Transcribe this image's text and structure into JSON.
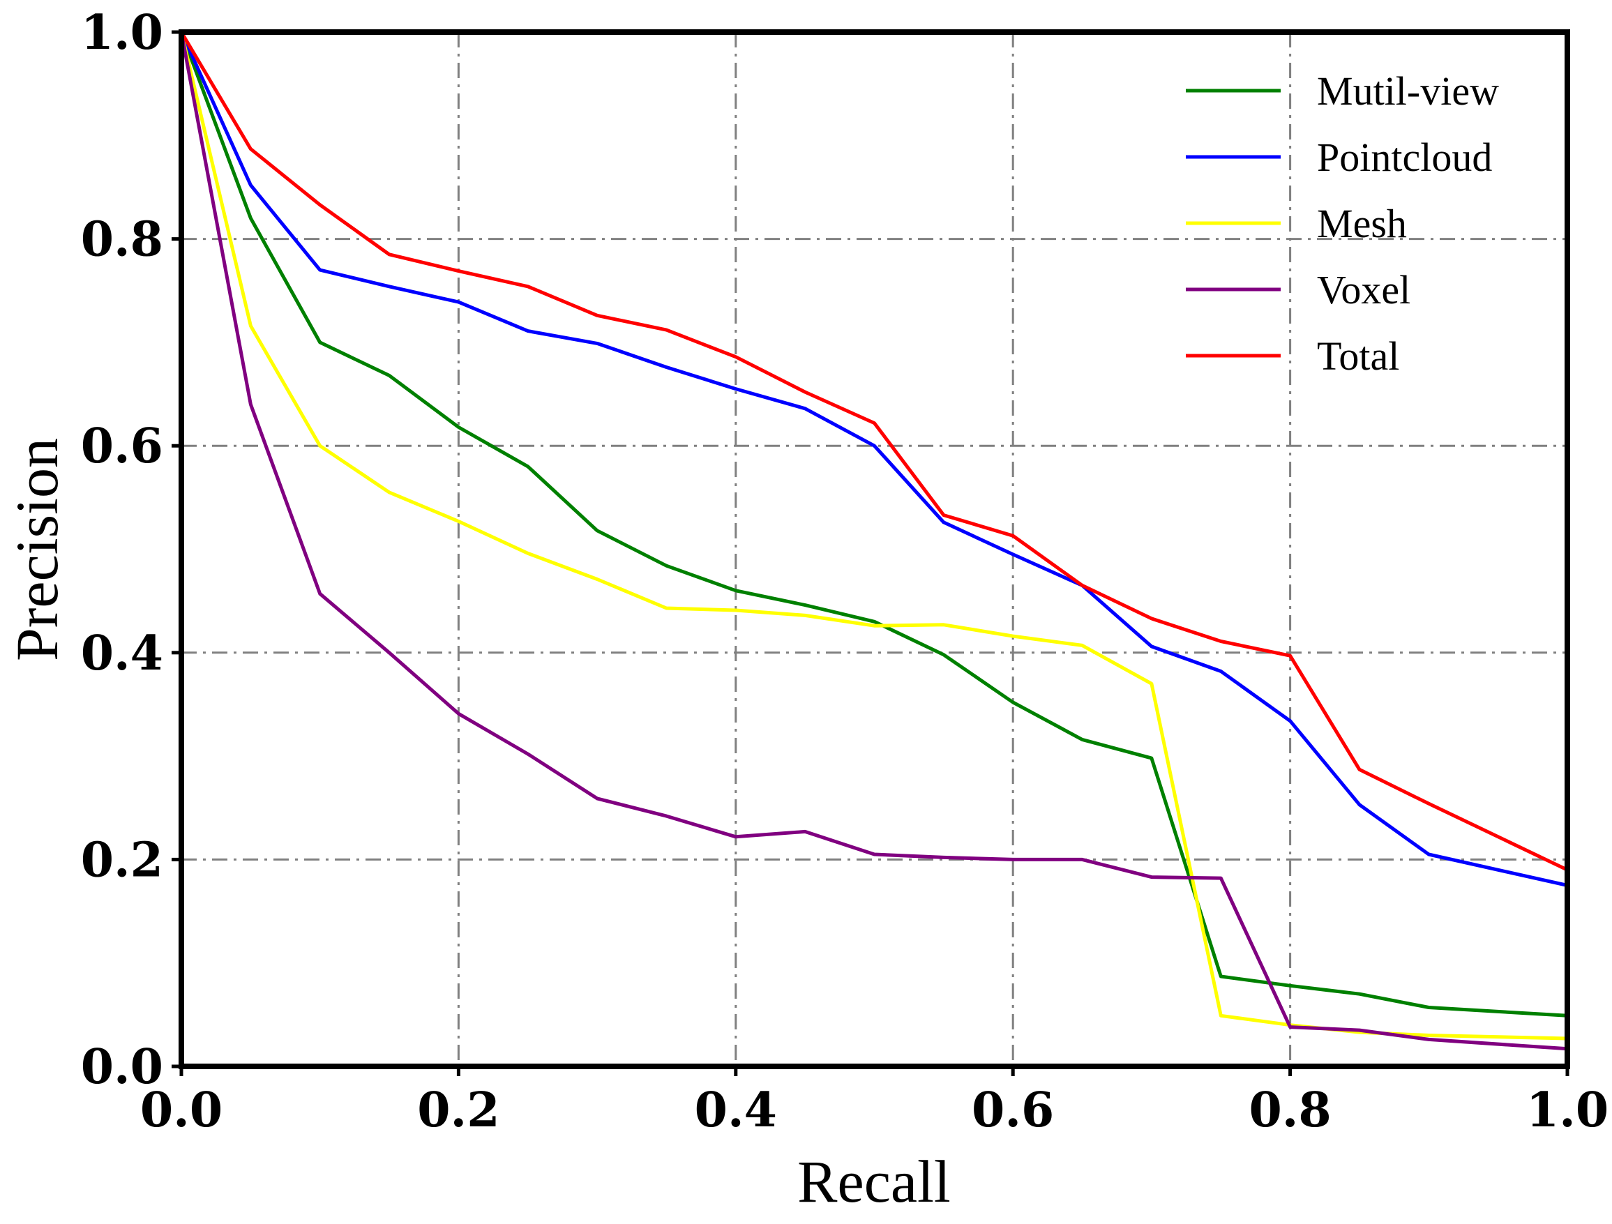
{
  "chart_data": {
    "type": "line",
    "title": "",
    "xlabel": "Recall",
    "ylabel": "Precision",
    "xlim": [
      0.0,
      1.0
    ],
    "ylim": [
      0.0,
      1.0
    ],
    "grid": true,
    "legend_position": "top-right",
    "xticks": [
      "0.0",
      "0.2",
      "0.4",
      "0.6",
      "0.8",
      "1.0"
    ],
    "yticks": [
      "0.0",
      "0.2",
      "0.4",
      "0.6",
      "0.8",
      "1.0"
    ],
    "x": [
      0.0,
      0.05,
      0.1,
      0.15,
      0.2,
      0.25,
      0.3,
      0.35,
      0.4,
      0.45,
      0.5,
      0.55,
      0.6,
      0.65,
      0.7,
      0.75,
      0.8,
      0.85,
      0.9,
      1.0
    ],
    "series": [
      {
        "name": "Mutil-view",
        "color": "#008000",
        "values": [
          1.0,
          0.82,
          0.7,
          0.668,
          0.618,
          0.58,
          0.518,
          0.484,
          0.46,
          0.446,
          0.43,
          0.398,
          0.352,
          0.316,
          0.298,
          0.087,
          0.078,
          0.07,
          0.057,
          0.049
        ]
      },
      {
        "name": "Pointcloud",
        "color": "#0000ff",
        "values": [
          1.0,
          0.852,
          0.77,
          0.754,
          0.739,
          0.711,
          0.699,
          0.676,
          0.655,
          0.636,
          0.6,
          0.526,
          0.495,
          0.465,
          0.406,
          0.382,
          0.334,
          0.253,
          0.205,
          0.175
        ]
      },
      {
        "name": "Mesh",
        "color": "#ffff00",
        "values": [
          1.0,
          0.716,
          0.6,
          0.555,
          0.527,
          0.496,
          0.471,
          0.443,
          0.441,
          0.436,
          0.426,
          0.427,
          0.416,
          0.407,
          0.37,
          0.049,
          0.04,
          0.033,
          0.03,
          0.027
        ]
      },
      {
        "name": "Voxel",
        "color": "#800080",
        "values": [
          1.0,
          0.64,
          0.457,
          0.4,
          0.341,
          0.302,
          0.259,
          0.242,
          0.222,
          0.227,
          0.205,
          0.202,
          0.2,
          0.2,
          0.183,
          0.182,
          0.038,
          0.035,
          0.026,
          0.017
        ]
      },
      {
        "name": "Total",
        "color": "#ff0000",
        "values": [
          1.0,
          0.887,
          0.833,
          0.785,
          0.769,
          0.754,
          0.726,
          0.712,
          0.686,
          0.652,
          0.622,
          0.533,
          0.513,
          0.465,
          0.433,
          0.411,
          0.397,
          0.287,
          0.254,
          0.19
        ]
      }
    ]
  }
}
